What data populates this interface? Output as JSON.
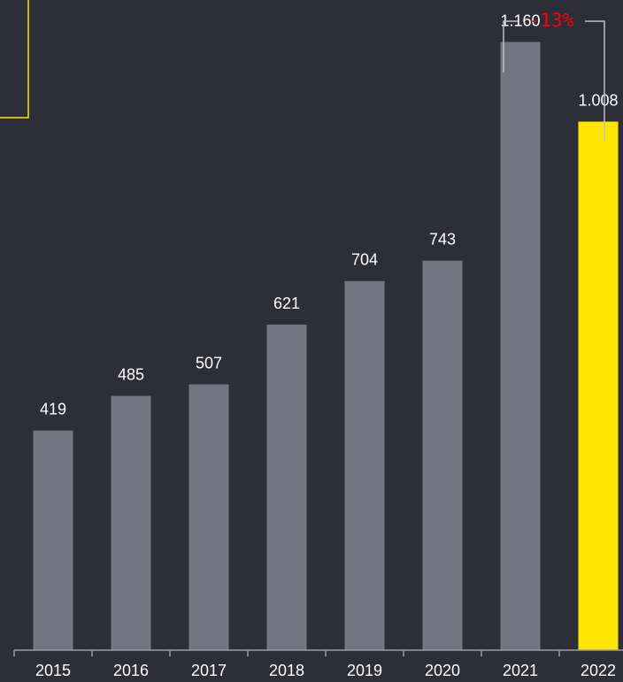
{
  "colors": {
    "background": "#2e2e38",
    "bar": "#747480",
    "highlight": "#ffe600",
    "axis": "#9a9aa5",
    "bracket": "#c0c0c8",
    "change": "#ff0000",
    "text": "#ffffff"
  },
  "chart_data": {
    "type": "bar",
    "categories": [
      "2015",
      "2016",
      "2017",
      "2018",
      "2019",
      "2020",
      "2021",
      "2022"
    ],
    "values": [
      419,
      485,
      507,
      621,
      704,
      743,
      1160,
      1008
    ],
    "value_labels": [
      "419",
      "485",
      "507",
      "621",
      "704",
      "743",
      "1.160",
      "1.008"
    ],
    "highlight_category": "2022",
    "ylim": [
      0,
      1240
    ],
    "grid": false,
    "legend": "none",
    "title": "",
    "xlabel": "",
    "ylabel": "",
    "annotation": {
      "from": "2021",
      "to": "2022",
      "text": "-13%"
    }
  }
}
